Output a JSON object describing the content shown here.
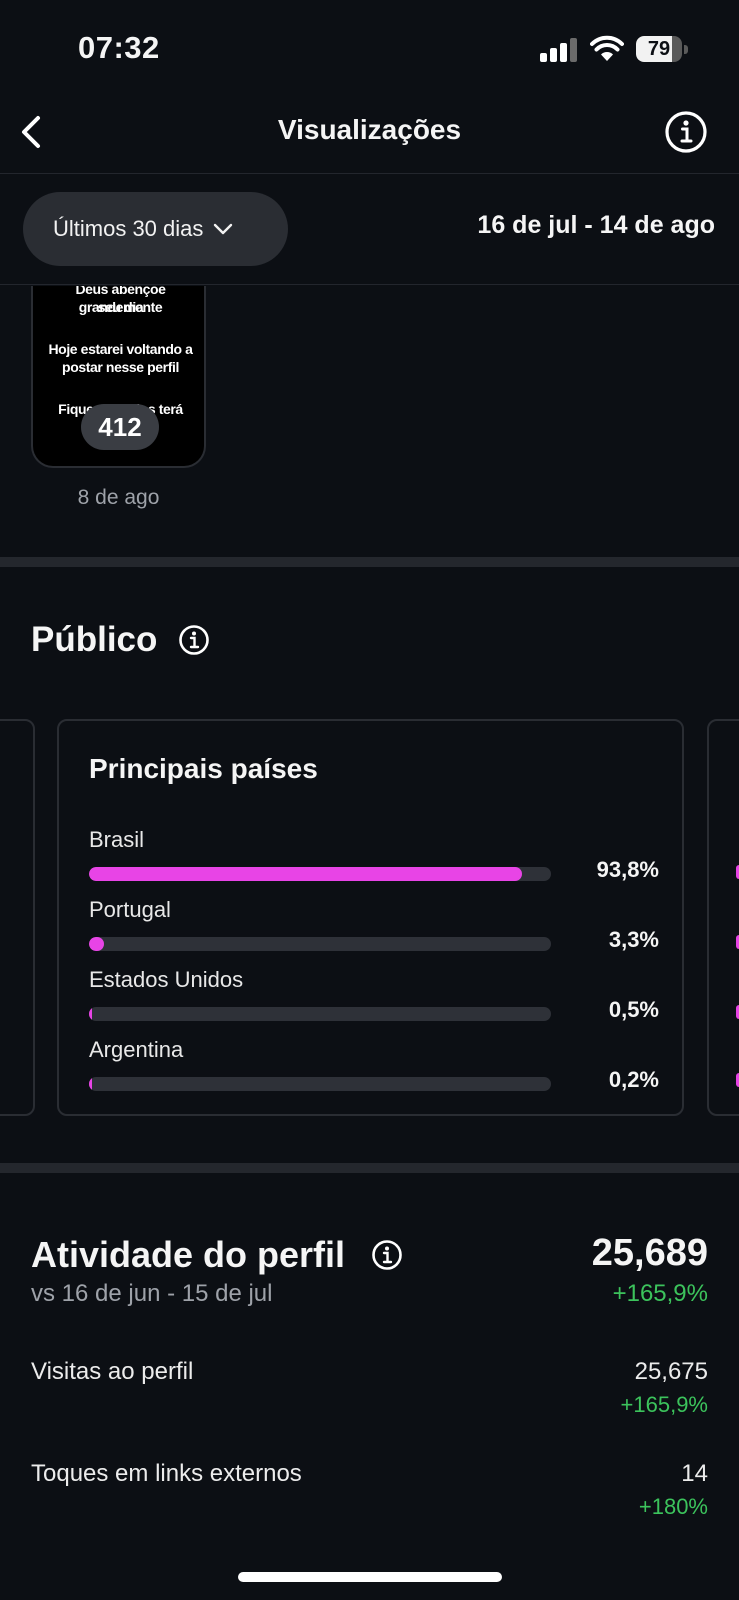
{
  "status_bar": {
    "time": "07:32",
    "battery_level": "79",
    "battery_fraction": 0.79
  },
  "header": {
    "title": "Visualizações",
    "back_icon": "chevron-left-icon",
    "info_icon": "info-icon"
  },
  "filter": {
    "range_label": "Últimos 30 dias",
    "date_range": "16 de jul - 14 de ago"
  },
  "post": {
    "lines": [
      "Deus abençoe grandemente",
      "seu dia",
      "",
      "Hoje estarei voltando a",
      "postar nesse perfil",
      "",
      "Fiquem ligados terá"
    ],
    "views": "412",
    "date": "8 de ago"
  },
  "audience": {
    "title": "Público",
    "card_title": "Principais países",
    "countries": [
      {
        "name": "Brasil",
        "pct": "93,8%",
        "value": 93.8
      },
      {
        "name": "Portugal",
        "pct": "3,3%",
        "value": 3.3
      },
      {
        "name": "Estados Unidos",
        "pct": "0,5%",
        "value": 0.5
      },
      {
        "name": "Argentina",
        "pct": "0,2%",
        "value": 0.2
      }
    ]
  },
  "activity": {
    "title": "Atividade do perfil",
    "comparison": "vs 16 de jun - 15 de jul",
    "total": "25,689",
    "total_change": "+165,9%",
    "metrics": [
      {
        "label": "Visitas ao perfil",
        "value": "25,675",
        "change": "+165,9%"
      },
      {
        "label": "Toques em links externos",
        "value": "14",
        "change": "+180%"
      }
    ]
  },
  "colors": {
    "background": "#0c0f14",
    "bar_fill": "#e844e6",
    "positive": "#3cc35c"
  }
}
